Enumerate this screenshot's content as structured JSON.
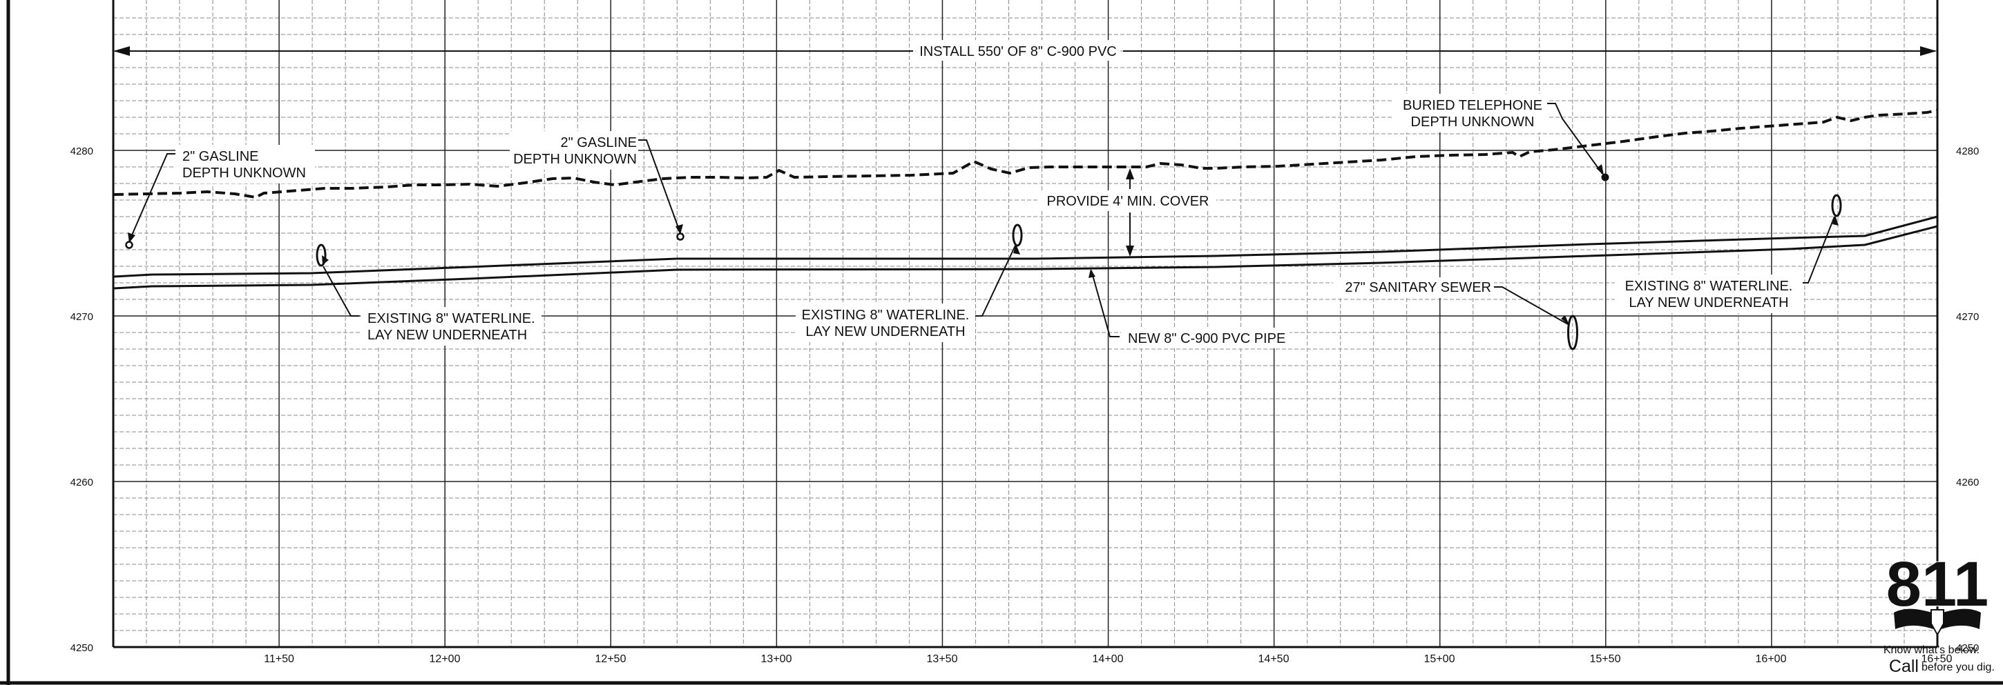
{
  "profile": {
    "station_start": 1100,
    "station_end": 1650,
    "elev_min": 4250,
    "elev_max": 4288.5,
    "elevation_labels": [
      "4280",
      "4270",
      "4260",
      "4250"
    ],
    "elevation_values": [
      4280,
      4270,
      4260,
      4250
    ],
    "station_labels": [
      "11+50",
      "12+00",
      "12+50",
      "13+00",
      "13+50",
      "14+00",
      "14+50",
      "15+00",
      "15+50",
      "16+00",
      "16+50"
    ],
    "station_values": [
      1150,
      1200,
      1250,
      1300,
      1350,
      1400,
      1450,
      1500,
      1550,
      1600,
      1650
    ]
  },
  "dimension": {
    "text": "INSTALL 550' OF 8\" C-900 PVC"
  },
  "notes": {
    "gasline_1_line1": "2\" GASLINE",
    "gasline_1_line2": "DEPTH UNKNOWN",
    "gasline_2_line1": "2\" GASLINE",
    "gasline_2_line2": "DEPTH UNKNOWN",
    "telephone_line1": "BURIED TELEPHONE",
    "telephone_line2": "DEPTH UNKNOWN",
    "cover": "PROVIDE 4' MIN. COVER",
    "waterline_1_line1": "EXISTING 8\" WATERLINE.",
    "waterline_1_line2": "LAY NEW UNDERNEATH",
    "waterline_2_line1": "EXISTING 8\" WATERLINE.",
    "waterline_2_line2": "LAY NEW UNDERNEATH",
    "waterline_3_line1": "EXISTING 8\" WATERLINE.",
    "waterline_3_line2": "LAY NEW UNDERNEATH",
    "new_pipe": "NEW 8\" C-900 PVC PIPE",
    "sewer": "27\" SANITARY SEWER"
  },
  "logo": {
    "number": "811",
    "line1": "Know what's below.",
    "line2_big": "Call",
    "line2_small": "before you dig."
  },
  "colors": {
    "major_grid": "#222222",
    "minor_grid": "#8a8a8a",
    "linework": "#111111"
  }
}
